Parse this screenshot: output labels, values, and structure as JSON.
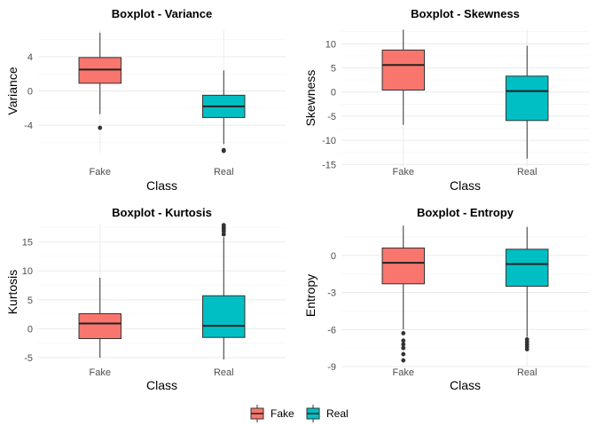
{
  "chart_data": [
    {
      "type": "boxplot",
      "title": "Boxplot - Variance",
      "xlabel": "Class",
      "ylabel": "Variance",
      "categories": [
        "Fake",
        "Real"
      ],
      "ylim": [
        -7.2,
        7.2
      ],
      "yticks": [
        -4,
        0,
        4
      ],
      "boxes": [
        {
          "name": "Fake",
          "min": -2.7,
          "q1": 0.9,
          "median": 2.5,
          "q3": 3.9,
          "max": 6.8,
          "outliers": [
            -4.3
          ]
        },
        {
          "name": "Real",
          "min": -6.2,
          "q1": -3.1,
          "median": -1.8,
          "q3": -0.5,
          "max": 2.4,
          "outliers": [
            -6.9,
            -7.0
          ]
        }
      ]
    },
    {
      "type": "boxplot",
      "title": "Boxplot - Skewness",
      "xlabel": "Class",
      "ylabel": "Skewness",
      "categories": [
        "Fake",
        "Real"
      ],
      "ylim": [
        -15.5,
        13.0
      ],
      "yticks": [
        -15,
        -10,
        -5,
        0,
        5,
        10
      ],
      "boxes": [
        {
          "name": "Fake",
          "min": -6.8,
          "q1": 0.4,
          "median": 5.6,
          "q3": 8.7,
          "max": 12.9,
          "outliers": []
        },
        {
          "name": "Real",
          "min": -13.8,
          "q1": -5.9,
          "median": 0.2,
          "q3": 3.3,
          "max": 9.6,
          "outliers": []
        }
      ]
    },
    {
      "type": "boxplot",
      "title": "Boxplot - Kurtosis",
      "xlabel": "Class",
      "ylabel": "Kurtosis",
      "categories": [
        "Fake",
        "Real"
      ],
      "ylim": [
        -5.3,
        18.0
      ],
      "yticks": [
        -5,
        0,
        5,
        10,
        15
      ],
      "boxes": [
        {
          "name": "Fake",
          "min": -5.0,
          "q1": -1.7,
          "median": 0.9,
          "q3": 2.6,
          "max": 8.8,
          "outliers": []
        },
        {
          "name": "Real",
          "min": -5.3,
          "q1": -1.5,
          "median": 0.5,
          "q3": 5.7,
          "max": 15.8,
          "outliers": [
            16.3,
            16.8,
            17.2,
            17.5,
            17.9
          ]
        }
      ]
    },
    {
      "type": "boxplot",
      "title": "Boxplot - Entropy",
      "xlabel": "Class",
      "ylabel": "Entropy",
      "categories": [
        "Fake",
        "Real"
      ],
      "ylim": [
        -9.0,
        2.5
      ],
      "yticks": [
        -9,
        -6,
        -3,
        0
      ],
      "boxes": [
        {
          "name": "Fake",
          "min": -6.0,
          "q1": -2.3,
          "median": -0.6,
          "q3": 0.6,
          "max": 2.4,
          "outliers": [
            -6.3,
            -6.9,
            -7.2,
            -7.5,
            -8.0,
            -8.5
          ]
        },
        {
          "name": "Real",
          "min": -6.6,
          "q1": -2.5,
          "median": -0.7,
          "q3": 0.5,
          "max": 2.3,
          "outliers": [
            -6.8,
            -7.0,
            -7.2,
            -7.4,
            -7.6
          ]
        }
      ]
    }
  ],
  "legend": {
    "position": "bottom",
    "items": [
      {
        "label": "Fake",
        "color": "#F8766D"
      },
      {
        "label": "Real",
        "color": "#00BFC4"
      }
    ]
  }
}
